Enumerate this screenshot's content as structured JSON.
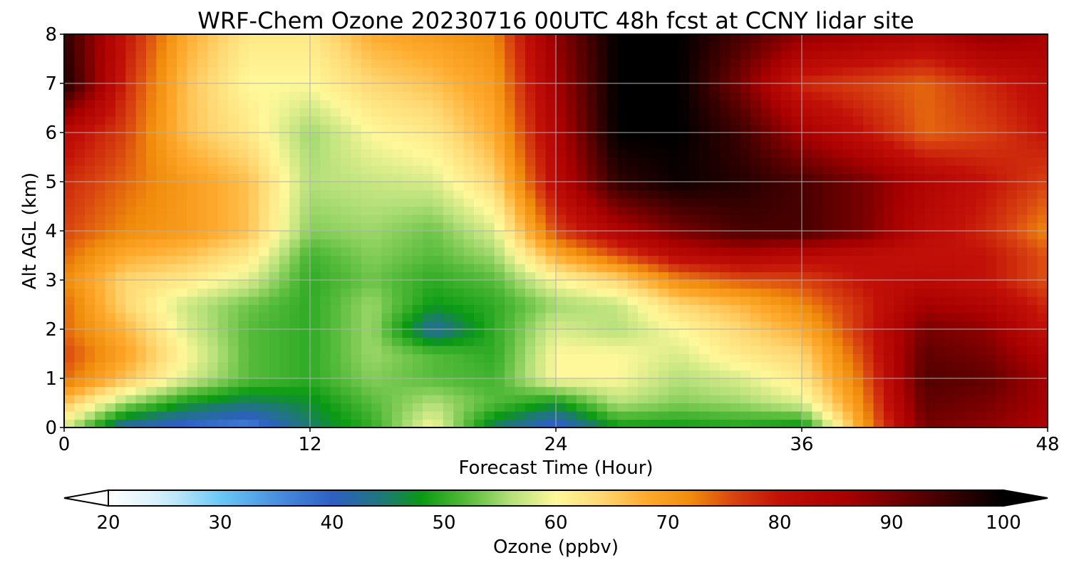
{
  "chart_data": {
    "type": "heatmap",
    "title": "WRF-Chem Ozone  20230716 00UTC 48h fcst at CCNY lidar site",
    "xlabel": "Forecast Time (Hour)",
    "ylabel": "Alt AGL (km)",
    "xlim": [
      0,
      48
    ],
    "ylim": [
      0,
      8
    ],
    "x_ticks": [
      "0",
      "12",
      "24",
      "36",
      "48"
    ],
    "y_ticks": [
      "0",
      "1",
      "2",
      "3",
      "4",
      "5",
      "6",
      "7",
      "8"
    ],
    "grid": true,
    "colorbar": {
      "label": "Ozone  (ppbv)",
      "range": [
        20,
        100
      ],
      "ticks": [
        "20",
        "30",
        "40",
        "50",
        "60",
        "70",
        "80",
        "90",
        "100"
      ],
      "extend": "both",
      "placement": "bottom"
    },
    "x_hours": [
      0,
      3,
      6,
      9,
      12,
      15,
      18,
      21,
      24,
      27,
      30,
      33,
      36,
      39,
      42,
      45,
      48
    ],
    "y_km": [
      0,
      0.5,
      1,
      1.5,
      2,
      2.5,
      3,
      3.5,
      4,
      5,
      6,
      7,
      8
    ],
    "z_ppbv": [
      [
        58,
        41,
        38,
        36,
        45,
        50,
        60,
        45,
        38,
        48,
        48,
        49,
        47,
        70,
        90,
        88,
        85
      ],
      [
        66,
        55,
        48,
        45,
        47,
        52,
        56,
        52,
        48,
        56,
        54,
        55,
        58,
        72,
        92,
        90,
        86
      ],
      [
        74,
        66,
        58,
        52,
        50,
        54,
        52,
        51,
        60,
        60,
        56,
        58,
        62,
        74,
        93,
        92,
        86
      ],
      [
        76,
        69,
        60,
        52,
        50,
        55,
        52,
        50,
        60,
        60,
        58,
        62,
        64,
        76,
        92,
        90,
        84
      ],
      [
        74,
        67,
        58,
        52,
        50,
        55,
        42,
        50,
        58,
        56,
        60,
        64,
        68,
        78,
        90,
        88,
        80
      ],
      [
        74,
        64,
        57,
        53,
        50,
        55,
        48,
        50,
        55,
        57,
        64,
        67,
        72,
        78,
        86,
        84,
        78
      ],
      [
        72,
        64,
        62,
        58,
        50,
        53,
        50,
        52,
        60,
        64,
        72,
        75,
        76,
        80,
        82,
        80,
        75
      ],
      [
        74,
        68,
        66,
        62,
        51,
        54,
        52,
        55,
        68,
        75,
        82,
        84,
        82,
        81,
        80,
        80,
        75
      ],
      [
        76,
        72,
        70,
        66,
        54,
        55,
        53,
        58,
        76,
        84,
        90,
        94,
        94,
        90,
        82,
        78,
        72
      ],
      [
        78,
        74,
        70,
        66,
        56,
        57,
        58,
        64,
        82,
        96,
        99,
        97,
        94,
        90,
        84,
        80,
        76
      ],
      [
        82,
        76,
        66,
        62,
        55,
        60,
        62,
        68,
        84,
        100,
        100,
        95,
        86,
        80,
        74,
        76,
        80
      ],
      [
        98,
        78,
        66,
        60,
        60,
        64,
        66,
        70,
        86,
        100,
        100,
        90,
        78,
        76,
        74,
        78,
        82
      ],
      [
        96,
        80,
        68,
        62,
        62,
        68,
        70,
        72,
        88,
        100,
        100,
        94,
        88,
        86,
        84,
        88,
        86
      ]
    ]
  },
  "colors": {
    "background": "#ffffff",
    "grid": "#b0b0b0",
    "colormap": [
      [
        20,
        "#ffffff"
      ],
      [
        25,
        "#d2effa"
      ],
      [
        30,
        "#6ac8f5"
      ],
      [
        35,
        "#4a90e0"
      ],
      [
        40,
        "#2e5fc4"
      ],
      [
        45,
        "#1d7a70"
      ],
      [
        48,
        "#0a9a12"
      ],
      [
        52,
        "#55bb3a"
      ],
      [
        56,
        "#b5e07a"
      ],
      [
        60,
        "#fff89a"
      ],
      [
        64,
        "#ffd873"
      ],
      [
        68,
        "#ffab2e"
      ],
      [
        72,
        "#f08c0c"
      ],
      [
        76,
        "#d84210"
      ],
      [
        80,
        "#c21008"
      ],
      [
        86,
        "#a80000"
      ],
      [
        92,
        "#600000"
      ],
      [
        100,
        "#000000"
      ]
    ]
  }
}
